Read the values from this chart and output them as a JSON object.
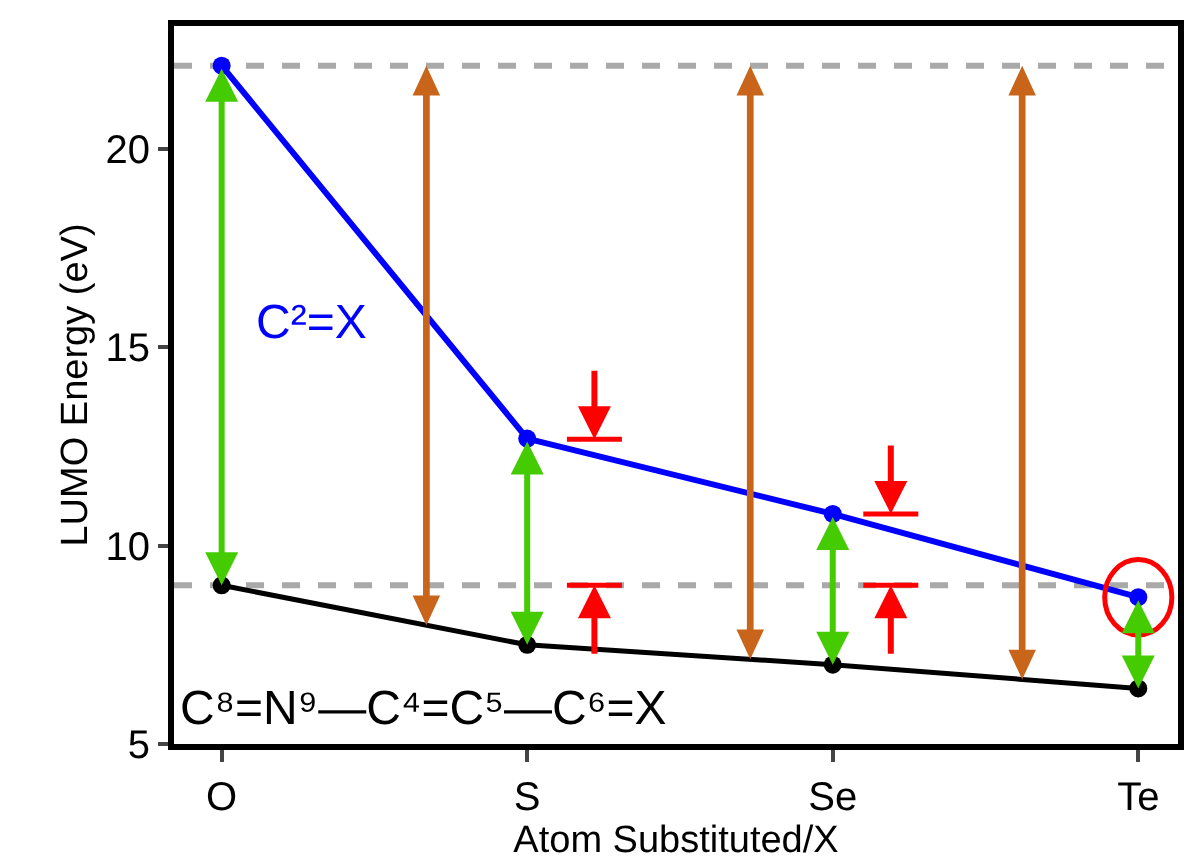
{
  "chart_data": {
    "type": "line",
    "xlabel": "Atom Substituted/X",
    "ylabel": "LUMO Energy (eV)",
    "categories": [
      "O",
      "S",
      "Se",
      "Te"
    ],
    "series": [
      {
        "name": "C²=X",
        "color": "#0000ff",
        "values": [
          22.1,
          12.7,
          10.8,
          8.7
        ]
      },
      {
        "name": "C⁸=N⁹—C⁴=C⁵—C⁶=X",
        "color": "#000000",
        "values": [
          9.0,
          7.5,
          7.0,
          6.4
        ]
      }
    ],
    "ylim": [
      5,
      23.1
    ],
    "yticks": [
      5,
      10,
      15,
      20
    ],
    "grid": false,
    "legend": false,
    "marker": "circle",
    "line_style": "solid",
    "ref_lines": [
      {
        "axis": "y",
        "value": 22.1,
        "color": "#a9a9a9",
        "line_style": "dashed"
      },
      {
        "axis": "y",
        "value": 9.0,
        "color": "#a9a9a9",
        "line_style": "dashed"
      }
    ]
  }
}
